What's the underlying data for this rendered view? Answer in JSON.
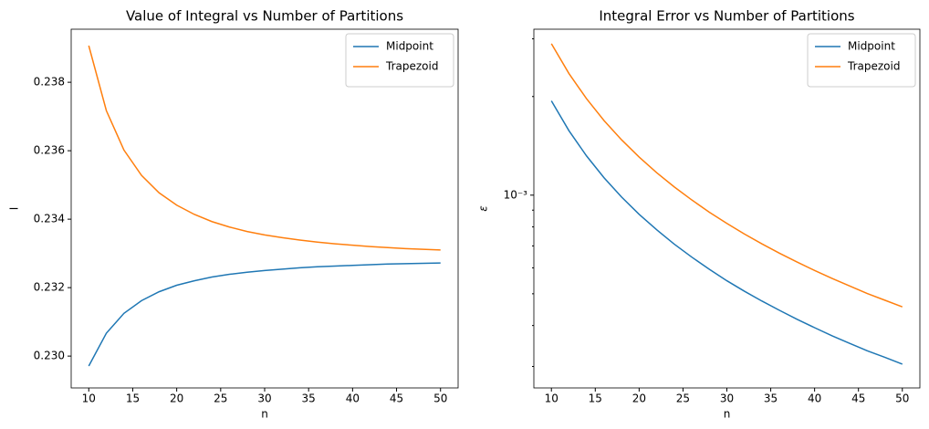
{
  "chart_data": [
    {
      "type": "line",
      "title": "Value of Integral vs Number of Partitions",
      "xlabel": "n",
      "ylabel": "I",
      "x": [
        10,
        12,
        14,
        16,
        18,
        20,
        22,
        24,
        26,
        28,
        30,
        32,
        34,
        36,
        38,
        40,
        42,
        44,
        46,
        48,
        50
      ],
      "series": [
        {
          "name": "Midpoint",
          "color": "#1f77b4",
          "values": [
            0.22971,
            0.23067,
            0.23125,
            0.23162,
            0.23188,
            0.23207,
            0.2322,
            0.23231,
            0.23239,
            0.23245,
            0.2325,
            0.23254,
            0.23258,
            0.23261,
            0.23263,
            0.23265,
            0.23267,
            0.23269,
            0.2327,
            0.23271,
            0.23272
          ]
        },
        {
          "name": "Trapezoid",
          "color": "#ff7f0e",
          "values": [
            0.23907,
            0.23717,
            0.23602,
            0.23528,
            0.23477,
            0.23441,
            0.23414,
            0.23393,
            0.23377,
            0.23364,
            0.23354,
            0.23346,
            0.23339,
            0.23333,
            0.23328,
            0.23324,
            0.2332,
            0.23317,
            0.23314,
            0.23312,
            0.2331
          ]
        }
      ],
      "xlim": [
        8,
        52
      ],
      "xticks": [
        10,
        15,
        20,
        25,
        30,
        35,
        40,
        45,
        50
      ],
      "ylim": [
        0.22907,
        0.23955
      ],
      "yticks": [
        {
          "value": 0.23,
          "label": "0.230"
        },
        {
          "value": 0.232,
          "label": "0.232"
        },
        {
          "value": 0.234,
          "label": "0.234"
        },
        {
          "value": 0.236,
          "label": "0.236"
        },
        {
          "value": 0.238,
          "label": "0.238"
        }
      ],
      "legend": "upper right"
    },
    {
      "type": "line",
      "title": "Integral Error vs Number of Partitions",
      "xlabel": "n",
      "ylabel": "ε",
      "yscale": "log",
      "x": [
        10,
        12,
        14,
        16,
        18,
        20,
        22,
        24,
        26,
        28,
        30,
        32,
        34,
        36,
        38,
        40,
        42,
        44,
        46,
        48,
        50
      ],
      "series": [
        {
          "name": "Midpoint",
          "color": "#1f77b4",
          "values": [
            0.00194,
            0.001573,
            0.001318,
            0.00113,
            0.000987,
            0.000874,
            0.000784,
            0.000709,
            0.000647,
            0.000594,
            0.000548,
            0.000509,
            0.000475,
            0.000445,
            0.000418,
            0.000394,
            0.000372,
            0.000353,
            0.000335,
            0.00032,
            0.000305
          ]
        },
        {
          "name": "Trapezoid",
          "color": "#ff7f0e",
          "values": [
            0.0029,
            0.002351,
            0.00197,
            0.001689,
            0.001475,
            0.001307,
            0.001171,
            0.00106,
            0.000967,
            0.000887,
            0.00082,
            0.000761,
            0.00071,
            0.000665,
            0.000625,
            0.000589,
            0.000557,
            0.000528,
            0.000501,
            0.000478,
            0.000456
          ]
        }
      ],
      "xlim": [
        8,
        52
      ],
      "xticks": [
        10,
        15,
        20,
        25,
        30,
        35,
        40,
        45,
        50
      ],
      "ylim": [
        0.000258,
        0.00321
      ],
      "yticks": [
        {
          "value": 0.001,
          "label": "10⁻³"
        }
      ],
      "yminorticks": [
        0.0003,
        0.0004,
        0.0005,
        0.0006,
        0.0007,
        0.0008,
        0.0009,
        0.002,
        0.003
      ],
      "legend": "upper right"
    }
  ]
}
